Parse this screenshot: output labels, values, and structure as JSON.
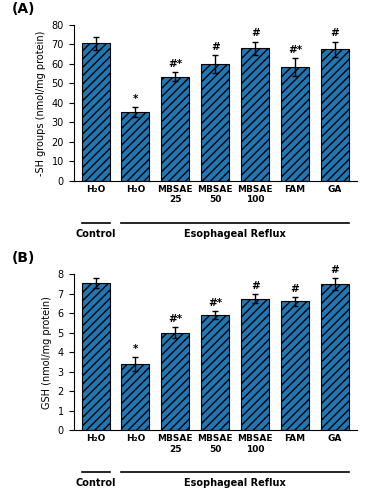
{
  "chart_data": [
    {
      "type": "bar",
      "title": "(A)",
      "ylabel": "-SH groups (nmol/mg protein)",
      "categories": [
        "H₂O",
        "H₂O",
        "MBSAE\n25",
        "MBSAE\n50",
        "MBSAE\n100",
        "FAM",
        "GA"
      ],
      "values": [
        70.5,
        35.5,
        53.5,
        60.0,
        68.0,
        58.5,
        67.5
      ],
      "errors": [
        3.5,
        2.5,
        2.5,
        4.5,
        3.5,
        4.5,
        4.0
      ],
      "annotations": [
        null,
        "*",
        "#*",
        "#",
        "#",
        "#*",
        "#"
      ],
      "groups": [
        {
          "label": "Control",
          "size": 1
        },
        {
          "label": "Esophageal Reflux",
          "size": 6
        }
      ],
      "ylim": [
        0,
        80
      ],
      "yticks": [
        0,
        10,
        20,
        30,
        40,
        50,
        60,
        70,
        80
      ]
    },
    {
      "type": "bar",
      "title": "(B)",
      "ylabel": "GSH (nmol/mg protein)",
      "categories": [
        "H₂O",
        "H₂O",
        "MBSAE\n25",
        "MBSAE\n50",
        "MBSAE\n100",
        "FAM",
        "GA"
      ],
      "values": [
        7.55,
        3.38,
        5.0,
        5.9,
        6.75,
        6.6,
        7.5
      ],
      "errors": [
        0.28,
        0.35,
        0.3,
        0.22,
        0.22,
        0.25,
        0.3
      ],
      "annotations": [
        null,
        "*",
        "#*",
        "#*",
        "#",
        "#",
        "#"
      ],
      "groups": [
        {
          "label": "Control",
          "size": 1
        },
        {
          "label": "Esophageal Reflux",
          "size": 6
        }
      ],
      "ylim": [
        0,
        8
      ],
      "yticks": [
        0,
        1,
        2,
        3,
        4,
        5,
        6,
        7,
        8
      ]
    }
  ]
}
